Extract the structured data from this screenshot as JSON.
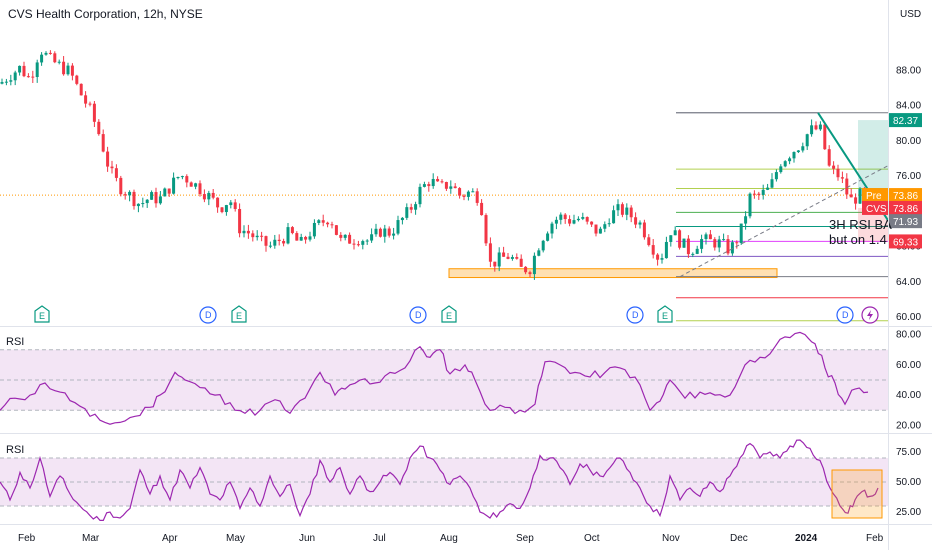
{
  "header": {
    "title": "CVS Health Corporation, 12h, NYSE",
    "currency": "USD"
  },
  "panes": {
    "rsi1_label": "RSI",
    "rsi2_label": "RSI"
  },
  "note": {
    "line1": "3H RSI BA",
    "line2": "but on 1.4"
  },
  "colors": {
    "up": "#089981",
    "down": "#f23645",
    "rsi_line": "#9c27b0",
    "rsi_band": "#f3e5f5",
    "zone": "#ffe0b2",
    "zone_border": "#ff9800",
    "trend": "#089981",
    "fib": "#b2d04f"
  },
  "chart_data": [
    {
      "type": "candlestick",
      "title": "CVS Health Corporation, 12h, NYSE",
      "y_range": [
        59,
        96
      ],
      "y_ticks": [
        60,
        64,
        68,
        72,
        76,
        80,
        84,
        88
      ],
      "y_tick_labels": [
        "60.00",
        "64.00",
        "68.00",
        "72.00",
        "76.00",
        "80.00",
        "84.00",
        "88.00"
      ],
      "x_labels": [
        "Feb",
        "Mar",
        "Apr",
        "May",
        "Jun",
        "Jul",
        "Aug",
        "Sep",
        "Oct",
        "Nov",
        "Dec",
        "2024",
        "Feb"
      ],
      "close_path": [
        [
          0,
          86.5
        ],
        [
          10,
          87.5
        ],
        [
          20,
          88.3
        ],
        [
          30,
          87.0
        ],
        [
          40,
          90.5
        ],
        [
          50,
          89.2
        ],
        [
          60,
          88.5
        ],
        [
          70,
          87.8
        ],
        [
          80,
          85.5
        ],
        [
          90,
          83.5
        ],
        [
          100,
          80.5
        ],
        [
          110,
          76.5
        ],
        [
          120,
          74.8
        ],
        [
          130,
          73.8
        ],
        [
          140,
          72.8
        ],
        [
          150,
          73.6
        ],
        [
          160,
          73.4
        ],
        [
          170,
          74.8
        ],
        [
          180,
          76.2
        ],
        [
          190,
          75.5
        ],
        [
          200,
          74.6
        ],
        [
          210,
          73.6
        ],
        [
          220,
          72.4
        ],
        [
          230,
          73.4
        ],
        [
          240,
          70.0
        ],
        [
          250,
          69.5
        ],
        [
          260,
          68.5
        ],
        [
          270,
          68.0
        ],
        [
          280,
          68.8
        ],
        [
          290,
          69.6
        ],
        [
          300,
          68.2
        ],
        [
          310,
          69.6
        ],
        [
          320,
          70.6
        ],
        [
          330,
          71.4
        ],
        [
          340,
          68.6
        ],
        [
          350,
          68.8
        ],
        [
          360,
          69.0
        ],
        [
          370,
          68.6
        ],
        [
          380,
          69.8
        ],
        [
          390,
          69.6
        ],
        [
          400,
          70.8
        ],
        [
          410,
          72.2
        ],
        [
          420,
          74.4
        ],
        [
          430,
          75.6
        ],
        [
          440,
          74.6
        ],
        [
          450,
          75.2
        ],
        [
          460,
          73.8
        ],
        [
          470,
          74.2
        ],
        [
          480,
          73.6
        ],
        [
          490,
          66.0
        ],
        [
          500,
          66.6
        ],
        [
          510,
          67.0
        ],
        [
          520,
          65.4
        ],
        [
          530,
          65.6
        ],
        [
          540,
          68.6
        ],
        [
          550,
          70.6
        ],
        [
          560,
          71.4
        ],
        [
          570,
          71.0
        ],
        [
          580,
          71.2
        ],
        [
          590,
          70.2
        ],
        [
          600,
          69.6
        ],
        [
          610,
          71.6
        ],
        [
          620,
          72.2
        ],
        [
          630,
          71.6
        ],
        [
          640,
          70.6
        ],
        [
          650,
          68.6
        ],
        [
          660,
          66.4
        ],
        [
          670,
          70.0
        ],
        [
          680,
          68.6
        ],
        [
          690,
          67.4
        ],
        [
          700,
          68.8
        ],
        [
          710,
          68.6
        ],
        [
          720,
          68.4
        ],
        [
          730,
          67.6
        ],
        [
          740,
          69.4
        ],
        [
          750,
          73.6
        ],
        [
          760,
          73.8
        ],
        [
          770,
          74.6
        ],
        [
          780,
          77.6
        ],
        [
          790,
          78.6
        ],
        [
          800,
          79.6
        ],
        [
          810,
          81.2
        ],
        [
          820,
          81.4
        ],
        [
          830,
          76.6
        ],
        [
          840,
          76.0
        ],
        [
          850,
          73.2
        ],
        [
          860,
          73.8
        ]
      ],
      "annotations": {
        "support_zone": [
          64.5,
          65.5
        ],
        "fib_levels": [
          83.2,
          76.8,
          74.6,
          71.9,
          70.3,
          68.6,
          66.9,
          64.6,
          62.2,
          59.6
        ],
        "trendline_down": [
          [
            818,
            83.2
          ],
          [
            888,
            71.0
          ]
        ],
        "dashed_trend": [
          [
            680,
            64.6
          ],
          [
            888,
            77.2
          ]
        ],
        "tags": [
          {
            "label": "82.37",
            "value": 82.37,
            "color": "#089981"
          },
          {
            "label": "Pre",
            "value": 73.86,
            "color": "#ff9800",
            "price": "73.86"
          },
          {
            "label": "CVS",
            "value": 72.4,
            "color": "#f23645",
            "price": "73.86"
          },
          {
            "label": "71.93",
            "value": 70.9,
            "color": "#787b86"
          },
          {
            "label": "69.33",
            "value": 68.6,
            "color": "#f23645"
          }
        ],
        "events": [
          {
            "x": 42,
            "type": "E"
          },
          {
            "x": 208,
            "type": "D"
          },
          {
            "x": 239,
            "type": "E"
          },
          {
            "x": 418,
            "type": "D"
          },
          {
            "x": 449,
            "type": "E"
          },
          {
            "x": 635,
            "type": "D"
          },
          {
            "x": 665,
            "type": "E"
          },
          {
            "x": 845,
            "type": "D"
          },
          {
            "x": 870,
            "type": "bolt"
          }
        ]
      }
    },
    {
      "type": "line",
      "title": "RSI",
      "y_range": [
        15,
        85
      ],
      "y_ticks": [
        20,
        40,
        60,
        80
      ],
      "y_tick_labels": [
        "20.00",
        "40.00",
        "60.00",
        "80.00"
      ],
      "band": [
        30,
        70
      ],
      "midline": 50,
      "series": [
        {
          "values": [
            [
              0,
              30
            ],
            [
              15,
              38
            ],
            [
              30,
              40
            ],
            [
              45,
              48
            ],
            [
              60,
              42
            ],
            [
              75,
              35
            ],
            [
              90,
              26
            ],
            [
              105,
              22
            ],
            [
              120,
              22
            ],
            [
              135,
              26
            ],
            [
              150,
              32
            ],
            [
              160,
              40
            ],
            [
              175,
              55
            ],
            [
              185,
              50
            ],
            [
              200,
              45
            ],
            [
              215,
              40
            ],
            [
              230,
              35
            ],
            [
              245,
              28
            ],
            [
              260,
              30
            ],
            [
              275,
              37
            ],
            [
              290,
              28
            ],
            [
              305,
              38
            ],
            [
              320,
              55
            ],
            [
              335,
              40
            ],
            [
              345,
              44
            ],
            [
              360,
              50
            ],
            [
              375,
              48
            ],
            [
              390,
              55
            ],
            [
              405,
              58
            ],
            [
              420,
              72
            ],
            [
              430,
              65
            ],
            [
              440,
              70
            ],
            [
              450,
              54
            ],
            [
              465,
              60
            ],
            [
              475,
              50
            ],
            [
              490,
              30
            ],
            [
              505,
              32
            ],
            [
              520,
              30
            ],
            [
              535,
              34
            ],
            [
              545,
              62
            ],
            [
              560,
              60
            ],
            [
              575,
              55
            ],
            [
              590,
              52
            ],
            [
              605,
              55
            ],
            [
              620,
              58
            ],
            [
              635,
              52
            ],
            [
              650,
              30
            ],
            [
              660,
              36
            ],
            [
              670,
              50
            ],
            [
              685,
              38
            ],
            [
              700,
              42
            ],
            [
              715,
              40
            ],
            [
              730,
              40
            ],
            [
              745,
              60
            ],
            [
              760,
              65
            ],
            [
              775,
              72
            ],
            [
              790,
              78
            ],
            [
              805,
              80
            ],
            [
              815,
              74
            ],
            [
              825,
              58
            ],
            [
              835,
              48
            ],
            [
              845,
              34
            ],
            [
              855,
              44
            ],
            [
              868,
              42
            ]
          ]
        }
      ]
    },
    {
      "type": "line",
      "title": "RSI",
      "y_range": [
        15,
        90
      ],
      "y_ticks": [
        25,
        50,
        75
      ],
      "y_tick_labels": [
        "25.00",
        "50.00",
        "75.00"
      ],
      "band": [
        30,
        70
      ],
      "midline": 50,
      "series": [
        {
          "values": [
            [
              0,
              50
            ],
            [
              10,
              35
            ],
            [
              20,
              58
            ],
            [
              30,
              45
            ],
            [
              40,
              70
            ],
            [
              50,
              38
            ],
            [
              60,
              55
            ],
            [
              70,
              40
            ],
            [
              80,
              30
            ],
            [
              90,
              22
            ],
            [
              100,
              18
            ],
            [
              110,
              25
            ],
            [
              120,
              20
            ],
            [
              130,
              28
            ],
            [
              140,
              60
            ],
            [
              150,
              40
            ],
            [
              160,
              55
            ],
            [
              170,
              35
            ],
            [
              180,
              60
            ],
            [
              190,
              45
            ],
            [
              200,
              62
            ],
            [
              210,
              40
            ],
            [
              220,
              35
            ],
            [
              230,
              50
            ],
            [
              240,
              28
            ],
            [
              250,
              45
            ],
            [
              260,
              30
            ],
            [
              270,
              55
            ],
            [
              280,
              38
            ],
            [
              290,
              48
            ],
            [
              300,
              22
            ],
            [
              310,
              40
            ],
            [
              320,
              68
            ],
            [
              330,
              50
            ],
            [
              340,
              62
            ],
            [
              350,
              40
            ],
            [
              360,
              55
            ],
            [
              370,
              42
            ],
            [
              380,
              50
            ],
            [
              390,
              58
            ],
            [
              400,
              48
            ],
            [
              410,
              70
            ],
            [
              420,
              80
            ],
            [
              430,
              70
            ],
            [
              440,
              60
            ],
            [
              450,
              48
            ],
            [
              460,
              55
            ],
            [
              470,
              45
            ],
            [
              480,
              25
            ],
            [
              490,
              20
            ],
            [
              500,
              25
            ],
            [
              510,
              32
            ],
            [
              520,
              28
            ],
            [
              530,
              45
            ],
            [
              540,
              72
            ],
            [
              550,
              70
            ],
            [
              560,
              62
            ],
            [
              570,
              48
            ],
            [
              580,
              65
            ],
            [
              590,
              60
            ],
            [
              600,
              55
            ],
            [
              610,
              62
            ],
            [
              620,
              70
            ],
            [
              630,
              58
            ],
            [
              640,
              45
            ],
            [
              650,
              30
            ],
            [
              660,
              22
            ],
            [
              670,
              55
            ],
            [
              680,
              35
            ],
            [
              690,
              45
            ],
            [
              700,
              38
            ],
            [
              710,
              50
            ],
            [
              720,
              42
            ],
            [
              730,
              55
            ],
            [
              740,
              70
            ],
            [
              750,
              82
            ],
            [
              760,
              70
            ],
            [
              770,
              75
            ],
            [
              780,
              70
            ],
            [
              790,
              80
            ],
            [
              800,
              85
            ],
            [
              810,
              78
            ],
            [
              820,
              68
            ],
            [
              830,
              45
            ],
            [
              840,
              30
            ],
            [
              848,
              24
            ],
            [
              855,
              35
            ],
            [
              862,
              42
            ],
            [
              870,
              38
            ],
            [
              878,
              45
            ]
          ]
        }
      ],
      "highlight_box": [
        20,
        60
      ]
    }
  ]
}
